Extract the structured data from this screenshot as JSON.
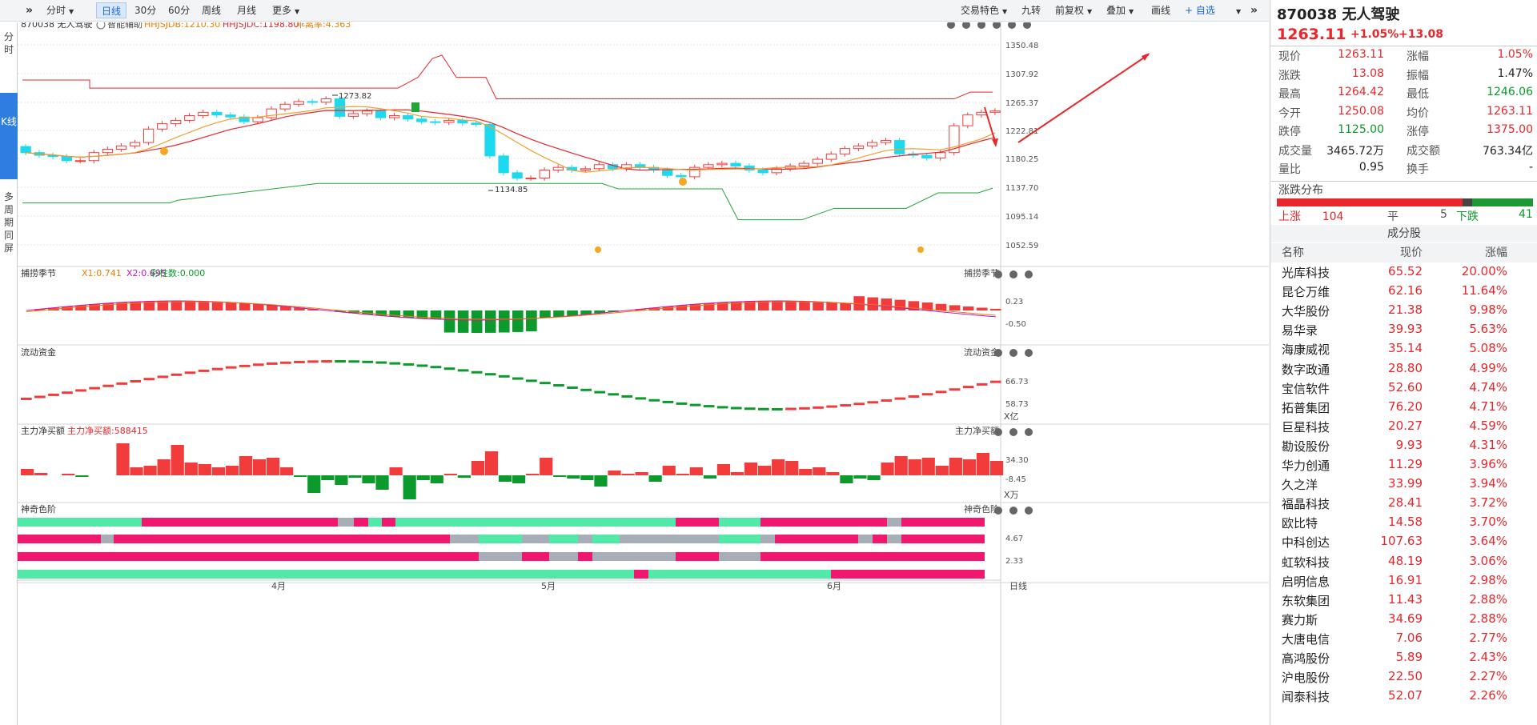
{
  "toolbar": {
    "collapse_icon": "double-chevron-right",
    "tabs": [
      {
        "label": "分时",
        "dd": true
      },
      {
        "label": "日线",
        "active": true
      },
      {
        "label": "30分"
      },
      {
        "label": "60分"
      },
      {
        "label": "周线"
      },
      {
        "label": "月线"
      },
      {
        "label": "更多",
        "dd": true
      }
    ],
    "right_tools": [
      {
        "label": "交易特色",
        "dd": true
      },
      {
        "label": "九转"
      },
      {
        "label": "前复权",
        "dd": true
      },
      {
        "label": "叠加",
        "dd": true
      },
      {
        "label": "画线"
      },
      {
        "label": "+ 自选"
      }
    ],
    "expand_icon": "double-chevron-right"
  },
  "side_tabs": [
    "分时",
    "K线",
    "多周期同屏"
  ],
  "chart": {
    "title": "870038 无人驾驶",
    "assist": "智能辅助",
    "ind1": "HHJSJDB:1210.30",
    "ind2": "HHJSJDC:1198.80",
    "ind3": "乖离率:4.363",
    "price_ticks": [
      "1350.48",
      "1307.92",
      "1265.37",
      "1222.81",
      "1180.25",
      "1137.70",
      "1095.14",
      "1052.59"
    ],
    "high_label": "1273.82",
    "low_label": "1134.85",
    "sub1_title": "捕捞季节",
    "sub1_x1": "X1:0.741",
    "sub1_x2": "X2:0.695",
    "sub1_bar": "彩柱数:0.000",
    "sub1_ticks": [
      "0.23",
      "-0.50"
    ],
    "sub2_title": "流动资金",
    "sub2_ticks": [
      "66.73",
      "58.73"
    ],
    "sub2_unit": "X亿",
    "sub3_title": "主力净买额",
    "sub3_val": "主力净买额:588415",
    "sub3_ticks": [
      "34.30",
      "-8.45"
    ],
    "sub3_unit": "X万",
    "sub4_title": "神奇色阶",
    "sub4_ticks": [
      "4.67",
      "2.33"
    ],
    "months": [
      "4月",
      "5月",
      "6月"
    ],
    "period": "日线"
  },
  "quote": {
    "code": "870038",
    "name": "无人驾驶",
    "price": "1263.11",
    "chg_pct": "+1.05%",
    "chg": "+13.08",
    "rows": [
      [
        "现价",
        "1263.11",
        "涨幅",
        "1.05%"
      ],
      [
        "涨跌",
        "13.08",
        "振幅",
        "1.47%"
      ],
      [
        "最高",
        "1264.42",
        "最低",
        "1246.06"
      ],
      [
        "今开",
        "1250.08",
        "均价",
        "1263.11"
      ],
      [
        "跌停",
        "1125.00",
        "涨停",
        "1375.00"
      ],
      [
        "成交量",
        "3465.72万",
        "成交额",
        "763.34亿"
      ],
      [
        "量比",
        "0.95",
        "换手",
        "-"
      ]
    ],
    "dist_title": "涨跌分布",
    "up_label": "上涨",
    "up": "104",
    "flat_label": "平",
    "flat": "5",
    "down_label": "下跌",
    "down": "41",
    "cons_title": "成分股",
    "headers": [
      "名称",
      "现价",
      "涨幅"
    ],
    "stocks": [
      [
        "光库科技",
        "65.52",
        "20.00%"
      ],
      [
        "昆仑万维",
        "62.16",
        "11.64%"
      ],
      [
        "大华股份",
        "21.38",
        "9.98%"
      ],
      [
        "易华录",
        "39.93",
        "5.63%"
      ],
      [
        "海康威视",
        "35.14",
        "5.08%"
      ],
      [
        "数字政通",
        "28.80",
        "4.99%"
      ],
      [
        "宝信软件",
        "52.60",
        "4.74%"
      ],
      [
        "拓普集团",
        "76.20",
        "4.71%"
      ],
      [
        "巨星科技",
        "20.27",
        "4.59%"
      ],
      [
        "勘设股份",
        "9.93",
        "4.31%"
      ],
      [
        "华力创通",
        "11.29",
        "3.96%"
      ],
      [
        "久之洋",
        "33.99",
        "3.94%"
      ],
      [
        "福晶科技",
        "28.41",
        "3.72%"
      ],
      [
        "欧比特",
        "14.58",
        "3.70%"
      ],
      [
        "中科创达",
        "107.63",
        "3.64%"
      ],
      [
        "虹软科技",
        "48.19",
        "3.06%"
      ],
      [
        "启明信息",
        "16.91",
        "2.98%"
      ],
      [
        "东软集团",
        "11.43",
        "2.88%"
      ],
      [
        "赛力斯",
        "34.69",
        "2.88%"
      ],
      [
        "大唐电信",
        "7.06",
        "2.77%"
      ],
      [
        "高鸿股份",
        "5.89",
        "2.43%"
      ],
      [
        "沪电股份",
        "22.50",
        "2.27%"
      ],
      [
        "闻泰科技",
        "52.07",
        "2.26%"
      ]
    ]
  },
  "colors": {
    "up": "#f23c3c",
    "down": "#1cd9f0",
    "ma1": "#e8262b",
    "ma2": "#f0a030",
    "band_up": "#e8262b",
    "band_dn": "#22a63a",
    "green": "#0b9a2b",
    "mint": "#52e8a8",
    "pink": "#f0186e",
    "gray": "#a7aeb8"
  }
}
